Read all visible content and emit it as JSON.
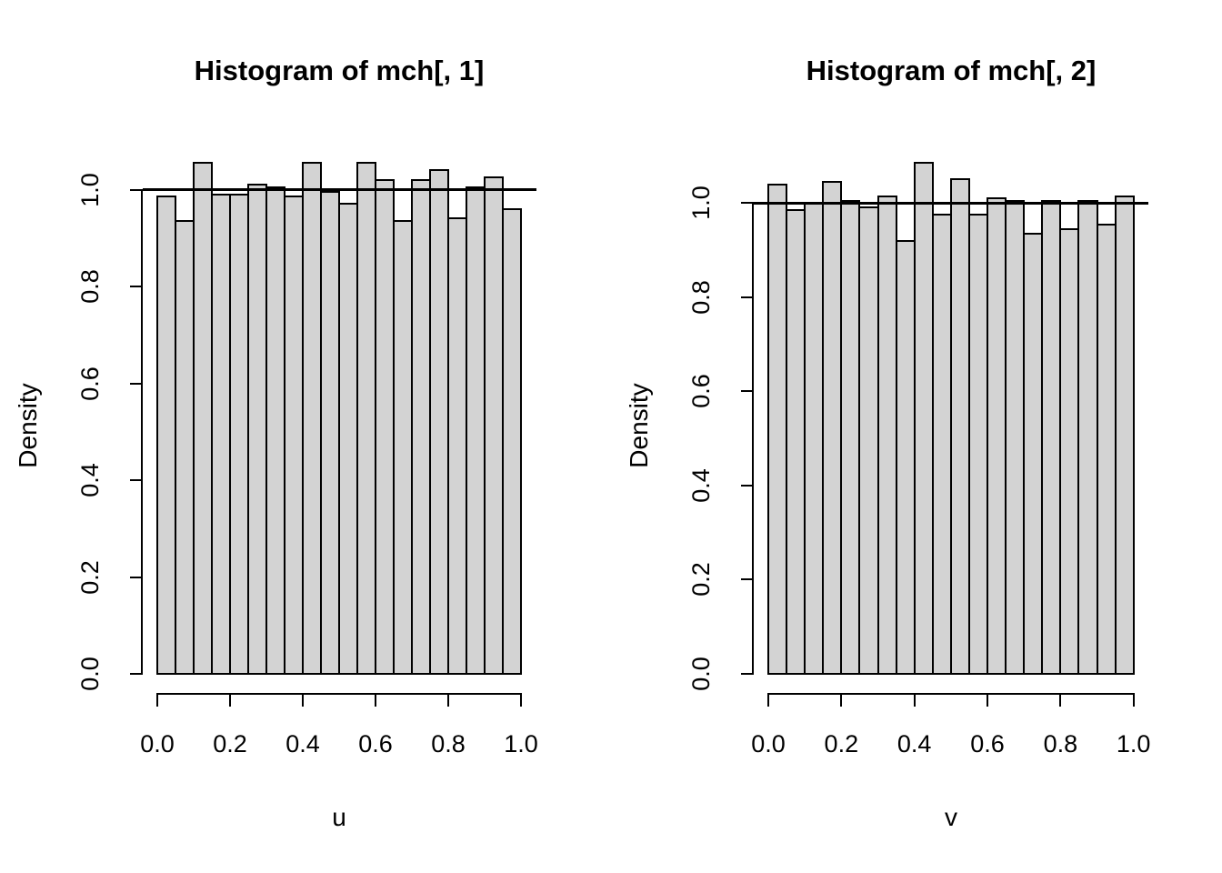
{
  "page": {
    "background": "#ffffff",
    "text_color": "#000000"
  },
  "chart_data": [
    {
      "type": "bar",
      "subtype": "histogram",
      "title": "Histogram of mch[, 1]",
      "xlabel": "u",
      "ylabel": "Density",
      "xlim": [
        0.0,
        1.0
      ],
      "ylim": [
        0.0,
        1.0
      ],
      "bin_width": 0.05,
      "bin_starts": [
        0.0,
        0.05,
        0.1,
        0.15,
        0.2,
        0.25,
        0.3,
        0.35,
        0.4,
        0.45,
        0.5,
        0.55,
        0.6,
        0.65,
        0.7,
        0.75,
        0.8,
        0.85,
        0.9,
        0.95
      ],
      "densities": [
        0.985,
        0.935,
        1.055,
        0.99,
        0.99,
        1.01,
        1.005,
        0.985,
        1.055,
        0.995,
        0.97,
        1.055,
        1.02,
        0.935,
        1.02,
        1.04,
        0.94,
        1.005,
        1.025,
        0.96
      ],
      "x_tick_labels": [
        "0.0",
        "0.2",
        "0.4",
        "0.6",
        "0.8",
        "1.0"
      ],
      "y_tick_labels": [
        "1.0",
        "0.8",
        "0.6",
        "0.4",
        "0.2",
        "0.0"
      ],
      "reference_line_y": 1.0,
      "grid": "off",
      "bar_fill": "#d3d3d3",
      "bar_stroke": "#000000"
    },
    {
      "type": "bar",
      "subtype": "histogram",
      "title": "Histogram of mch[, 2]",
      "xlabel": "v",
      "ylabel": "Density",
      "xlim": [
        0.0,
        1.0
      ],
      "ylim": [
        0.0,
        1.0
      ],
      "bin_width": 0.05,
      "bin_starts": [
        0.0,
        0.05,
        0.1,
        0.15,
        0.2,
        0.25,
        0.3,
        0.35,
        0.4,
        0.45,
        0.5,
        0.55,
        0.6,
        0.65,
        0.7,
        0.75,
        0.8,
        0.85,
        0.9,
        0.95
      ],
      "densities": [
        1.04,
        0.985,
        1.0,
        1.045,
        1.005,
        0.99,
        1.015,
        0.92,
        1.085,
        0.975,
        1.05,
        0.975,
        1.01,
        1.005,
        0.935,
        1.005,
        0.945,
        1.005,
        0.955,
        1.015
      ],
      "x_tick_labels": [
        "0.0",
        "0.2",
        "0.4",
        "0.6",
        "0.8",
        "1.0"
      ],
      "y_tick_labels": [
        "1.0",
        "0.8",
        "0.6",
        "0.4",
        "0.2",
        "0.0"
      ],
      "reference_line_y": 1.0,
      "grid": "off",
      "bar_fill": "#d3d3d3",
      "bar_stroke": "#000000"
    }
  ]
}
